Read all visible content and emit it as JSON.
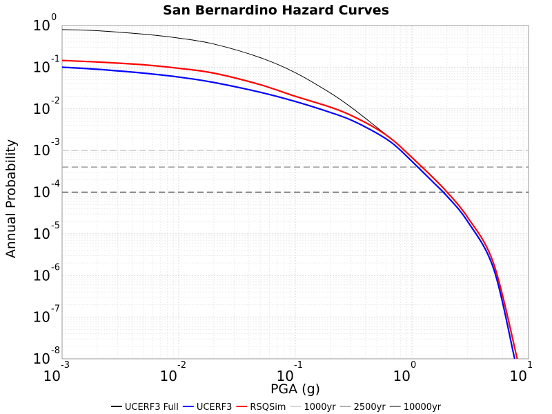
{
  "chart_data": {
    "type": "line",
    "title": "San Bernardino Hazard Curves",
    "xlabel": "PGA (g)",
    "ylabel": "Annual Probability",
    "x_scale": "log",
    "y_scale": "log",
    "xlim": [
      0.001,
      10
    ],
    "ylim": [
      1e-08,
      1
    ],
    "x_ticks": [
      {
        "base": "10",
        "exp": "-3",
        "value": 0.001
      },
      {
        "base": "10",
        "exp": "-2",
        "value": 0.01
      },
      {
        "base": "10",
        "exp": "-1",
        "value": 0.1
      },
      {
        "base": "10",
        "exp": "0",
        "value": 1
      },
      {
        "base": "10",
        "exp": "1",
        "value": 10
      }
    ],
    "y_ticks": [
      {
        "base": "10",
        "exp": "0",
        "value": 1
      },
      {
        "base": "10",
        "exp": "-1",
        "value": 0.1
      },
      {
        "base": "10",
        "exp": "-2",
        "value": 0.01
      },
      {
        "base": "10",
        "exp": "-3",
        "value": 0.001
      },
      {
        "base": "10",
        "exp": "-4",
        "value": 0.0001
      },
      {
        "base": "10",
        "exp": "-5",
        "value": 1e-05
      },
      {
        "base": "10",
        "exp": "-6",
        "value": 1e-06
      },
      {
        "base": "10",
        "exp": "-7",
        "value": 1e-07
      },
      {
        "base": "10",
        "exp": "-8",
        "value": 1e-08
      }
    ],
    "grid": true,
    "legend_position": "bottom",
    "series": [
      {
        "name": "UCERF3 Full",
        "color": "#000000",
        "style": "solid",
        "x": [
          0.001,
          0.002,
          0.005,
          0.01,
          0.02,
          0.05,
          0.1,
          0.2,
          0.3,
          0.5,
          0.7,
          1.0,
          1.5,
          2,
          3,
          5,
          8
        ],
        "y": [
          0.8,
          0.75,
          0.62,
          0.5,
          0.36,
          0.17,
          0.074,
          0.024,
          0.011,
          0.0036,
          0.0017,
          0.00068,
          0.00023,
          0.0001,
          2.5e-05,
          2e-06,
          1e-08
        ]
      },
      {
        "name": "UCERF3",
        "color": "#0000ff",
        "style": "solid",
        "x": [
          0.001,
          0.002,
          0.005,
          0.01,
          0.02,
          0.05,
          0.1,
          0.2,
          0.3,
          0.5,
          0.7,
          1.0,
          1.5,
          2,
          3,
          5,
          7.6
        ],
        "y": [
          0.1,
          0.089,
          0.072,
          0.058,
          0.043,
          0.025,
          0.015,
          0.0082,
          0.0054,
          0.0026,
          0.0014,
          0.00055,
          0.00018,
          8e-05,
          2e-05,
          1.5e-06,
          1e-08
        ]
      },
      {
        "name": "RSQSim",
        "color": "#ff0000",
        "style": "solid",
        "x": [
          0.001,
          0.002,
          0.005,
          0.01,
          0.02,
          0.05,
          0.1,
          0.2,
          0.3,
          0.5,
          0.7,
          1.0,
          1.5,
          2,
          3,
          5,
          8
        ],
        "y": [
          0.145,
          0.133,
          0.114,
          0.094,
          0.072,
          0.038,
          0.02,
          0.011,
          0.007,
          0.0033,
          0.0017,
          0.00068,
          0.00023,
          0.0001,
          2.5e-05,
          2e-06,
          1e-08
        ]
      },
      {
        "name": "1000yr",
        "color": "#cccccc",
        "style": "dashed",
        "x": [
          0.001,
          10
        ],
        "y": [
          0.001,
          0.001
        ]
      },
      {
        "name": "2500yr",
        "color": "#999999",
        "style": "dashed",
        "x": [
          0.001,
          10
        ],
        "y": [
          0.0004,
          0.0004
        ]
      },
      {
        "name": "10000yr",
        "color": "#555555",
        "style": "dashed",
        "x": [
          0.001,
          10
        ],
        "y": [
          0.0001,
          0.0001
        ]
      }
    ]
  }
}
